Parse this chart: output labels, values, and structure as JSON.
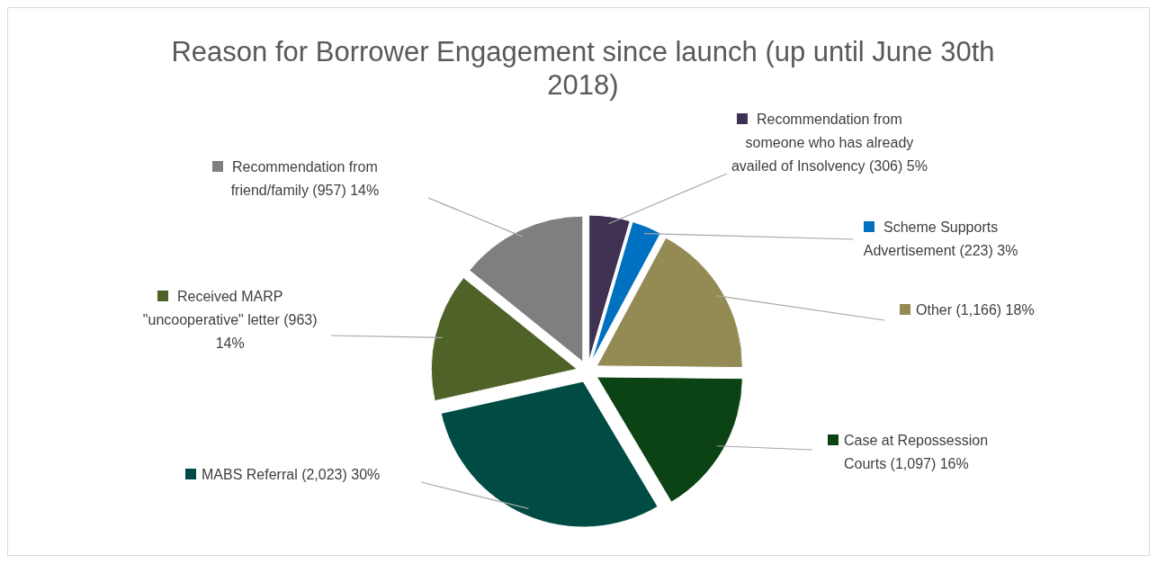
{
  "chart_data": {
    "type": "pie",
    "title": "Reason for Borrower Engagement since launch (up until June 30th 2018)",
    "categories": [
      "Recommendation from someone who has already availed of Insolvency",
      "Scheme Supports Advertisement",
      "Other",
      "Case at Repossession Courts",
      "MABS Referral",
      "Received MARP \"uncooperative\" letter",
      "Recommendation from friend/family "
    ],
    "values": [
      306,
      223,
      1166,
      1097,
      2023,
      963,
      957
    ],
    "colors": [
      "#3f3151",
      "#0070c0",
      "#948a54",
      "#0b4315",
      "#004c44",
      "#4f6228",
      "#7f7f7f"
    ],
    "legend": "right",
    "value_labels": [
      "(306) 5%",
      "(223) 3%",
      "(1,166) 18%",
      "(1,097) 16%",
      "(2,023) 30%",
      "(963) 14%",
      "(957) 14%"
    ]
  }
}
